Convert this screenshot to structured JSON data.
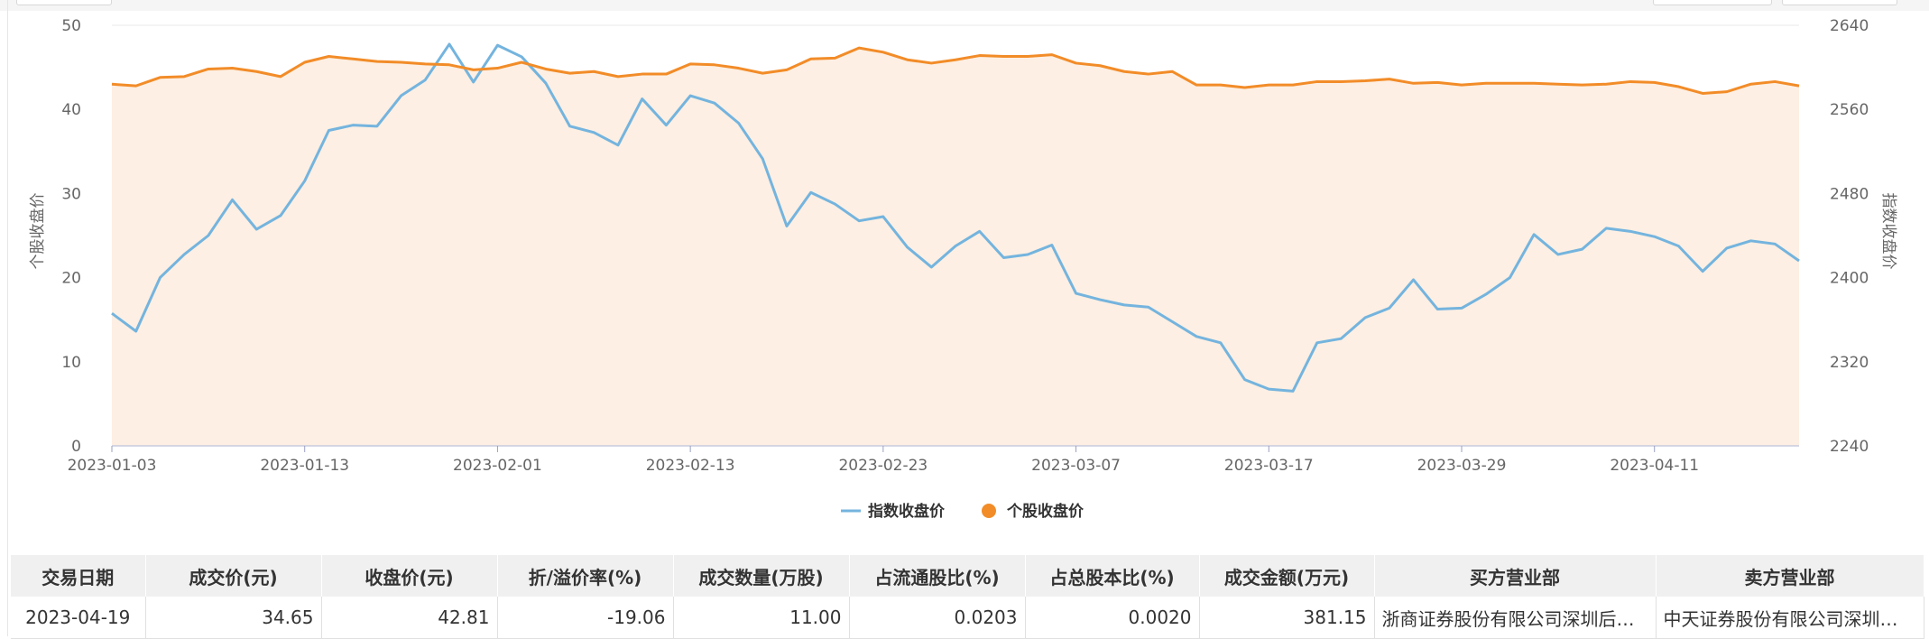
{
  "colors": {
    "index": "#74b4de",
    "stock": "#f28c28",
    "area": "#fdefe3",
    "grid": "#e8e8e8"
  },
  "chart_data": {
    "type": "line",
    "x": [
      "2023-01-03",
      "2023-01-04",
      "2023-01-05",
      "2023-01-06",
      "2023-01-09",
      "2023-01-10",
      "2023-01-11",
      "2023-01-12",
      "2023-01-13",
      "2023-01-16",
      "2023-01-17",
      "2023-01-18",
      "2023-01-19",
      "2023-01-20",
      "2023-01-30",
      "2023-01-31",
      "2023-02-01",
      "2023-02-02",
      "2023-02-03",
      "2023-02-06",
      "2023-02-07",
      "2023-02-08",
      "2023-02-09",
      "2023-02-10",
      "2023-02-13",
      "2023-02-14",
      "2023-02-15",
      "2023-02-16",
      "2023-02-17",
      "2023-02-20",
      "2023-02-21",
      "2023-02-22",
      "2023-02-23",
      "2023-02-24",
      "2023-02-27",
      "2023-02-28",
      "2023-03-01",
      "2023-03-02",
      "2023-03-03",
      "2023-03-06",
      "2023-03-07",
      "2023-03-08",
      "2023-03-09",
      "2023-03-10",
      "2023-03-13",
      "2023-03-14",
      "2023-03-15",
      "2023-03-16",
      "2023-03-17",
      "2023-03-20",
      "2023-03-21",
      "2023-03-22",
      "2023-03-23",
      "2023-03-24",
      "2023-03-27",
      "2023-03-28",
      "2023-03-29",
      "2023-03-30",
      "2023-03-31",
      "2023-04-03",
      "2023-04-04",
      "2023-04-06",
      "2023-04-07",
      "2023-04-10",
      "2023-04-11",
      "2023-04-12",
      "2023-04-13",
      "2023-04-14",
      "2023-04-17",
      "2023-04-18",
      "2023-04-19"
    ],
    "x_ticks": [
      "2023-01-03",
      "2023-01-13",
      "2023-02-01",
      "2023-02-13",
      "2023-02-23",
      "2023-03-07",
      "2023-03-17",
      "2023-03-29",
      "2023-04-11"
    ],
    "ylabel": "个股收盘价",
    "y2label": "指数收盘价",
    "ylim": [
      0,
      50
    ],
    "y_ticks": [
      "0",
      "10",
      "20",
      "30",
      "40",
      "50"
    ],
    "y2lim": [
      2240,
      2640
    ],
    "y2_ticks": [
      "2240",
      "2320",
      "2400",
      "2480",
      "2560",
      "2640"
    ],
    "legend_position": "bottom-center",
    "grid": true,
    "series": [
      {
        "name": "指数收盘价",
        "axis": "right",
        "style": "line",
        "values": [
          2366,
          2349,
          2400,
          2422,
          2440,
          2474,
          2446,
          2459,
          2492,
          2540,
          2545,
          2544,
          2573,
          2588,
          2622,
          2586,
          2621,
          2610,
          2585,
          2544,
          2538,
          2526,
          2570,
          2545,
          2573,
          2566,
          2547,
          2513,
          2449,
          2481,
          2470,
          2454,
          2458,
          2429,
          2410,
          2430,
          2444,
          2419,
          2422,
          2431,
          2385,
          2379,
          2374,
          2372,
          2358,
          2344,
          2338,
          2303,
          2294,
          2292,
          2338,
          2342,
          2362,
          2371,
          2398,
          2370,
          2371,
          2384,
          2400,
          2441,
          2422,
          2427,
          2447,
          2444,
          2439,
          2430,
          2406,
          2428,
          2435,
          2432,
          2416
        ]
      },
      {
        "name": "个股收盘价",
        "axis": "left",
        "style": "area",
        "values": [
          43.0,
          42.8,
          43.8,
          43.9,
          44.8,
          44.9,
          44.5,
          43.9,
          45.6,
          46.3,
          46.0,
          45.7,
          45.6,
          45.4,
          45.3,
          44.7,
          44.9,
          45.6,
          44.8,
          44.3,
          44.5,
          43.9,
          44.2,
          44.2,
          45.4,
          45.3,
          44.9,
          44.3,
          44.7,
          46.0,
          46.1,
          47.3,
          46.8,
          45.9,
          45.5,
          45.9,
          46.4,
          46.3,
          46.3,
          46.5,
          45.5,
          45.2,
          44.5,
          44.2,
          44.5,
          42.9,
          42.9,
          42.6,
          42.9,
          42.9,
          43.3,
          43.3,
          43.4,
          43.6,
          43.1,
          43.2,
          42.9,
          43.1,
          43.1,
          43.1,
          43.0,
          42.9,
          43.0,
          43.3,
          43.2,
          42.7,
          41.9,
          42.1,
          43.0,
          43.3,
          42.8
        ]
      }
    ]
  },
  "table": {
    "headers": [
      "交易日期",
      "成交价(元)",
      "收盘价(元)",
      "折/溢价率(%)",
      "成交数量(万股)",
      "占流通股比(%)",
      "占总股本比(%)",
      "成交金额(万元)",
      "买方营业部",
      "卖方营业部"
    ],
    "rows": [
      [
        "2023-04-19",
        "34.65",
        "42.81",
        "-19.06",
        "11.00",
        "0.0203",
        "0.0020",
        "381.15",
        "浙商证券股份有限公司深圳后…",
        "中天证券股份有限公司深圳…"
      ]
    ]
  }
}
